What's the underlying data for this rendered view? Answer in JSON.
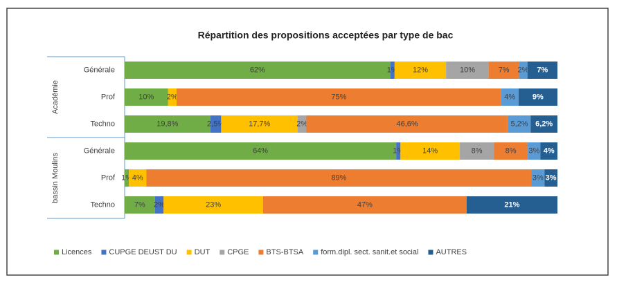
{
  "chart_data": {
    "type": "bar",
    "orientation": "horizontal",
    "stacking": "percent",
    "title": "Répartition des propositions acceptées par type de bac",
    "groups": [
      {
        "name": "Académie",
        "categories": [
          "Générale",
          "Prof",
          "Techno"
        ]
      },
      {
        "name": "bassin Moulins",
        "categories": [
          "Générale",
          "Prof",
          "Techno"
        ]
      }
    ],
    "series": [
      {
        "name": "Licences",
        "color": "#70ad47",
        "values": [
          62,
          10,
          19.8,
          64,
          1,
          7
        ],
        "value_labels": [
          "62%",
          "10%",
          "19,8%",
          "64%",
          "1%",
          "7%"
        ]
      },
      {
        "name": "CUPGE DEUST DU",
        "color": "#4472c4",
        "values": [
          1,
          null,
          2.5,
          1,
          null,
          2
        ],
        "value_labels": [
          "1%",
          null,
          "2,5%",
          "1%",
          null,
          "2%"
        ]
      },
      {
        "name": "DUT",
        "color": "#ffc000",
        "values": [
          12,
          2,
          17.7,
          14,
          4,
          23
        ],
        "value_labels": [
          "12%",
          "2%",
          "17,7%",
          "14%",
          "4%",
          "23%"
        ]
      },
      {
        "name": "CPGE",
        "color": "#a5a5a5",
        "values": [
          10,
          null,
          2,
          8,
          null,
          null
        ],
        "value_labels": [
          "10%",
          null,
          "2%",
          "8%",
          null,
          null
        ]
      },
      {
        "name": "BTS-BTSA",
        "color": "#ed7d31",
        "values": [
          7,
          75,
          46.6,
          8,
          89,
          47
        ],
        "value_labels": [
          "7%",
          "75%",
          "46,6%",
          "8%",
          "89%",
          "47%"
        ]
      },
      {
        "name": "form.dipl. sect. sanit.et social",
        "color": "#5b9bd5",
        "values": [
          2,
          4,
          5.2,
          3,
          3,
          null
        ],
        "value_labels": [
          "2%",
          "4%",
          "5,2%",
          "3%",
          "3%",
          null
        ]
      },
      {
        "name": "AUTRES",
        "color": "#255e91",
        "values": [
          7,
          9,
          6.2,
          4,
          3,
          21
        ],
        "value_labels": [
          "7%",
          "9%",
          "6,2%",
          "4%",
          "3%",
          "21%"
        ]
      }
    ],
    "legend": "bottom"
  }
}
